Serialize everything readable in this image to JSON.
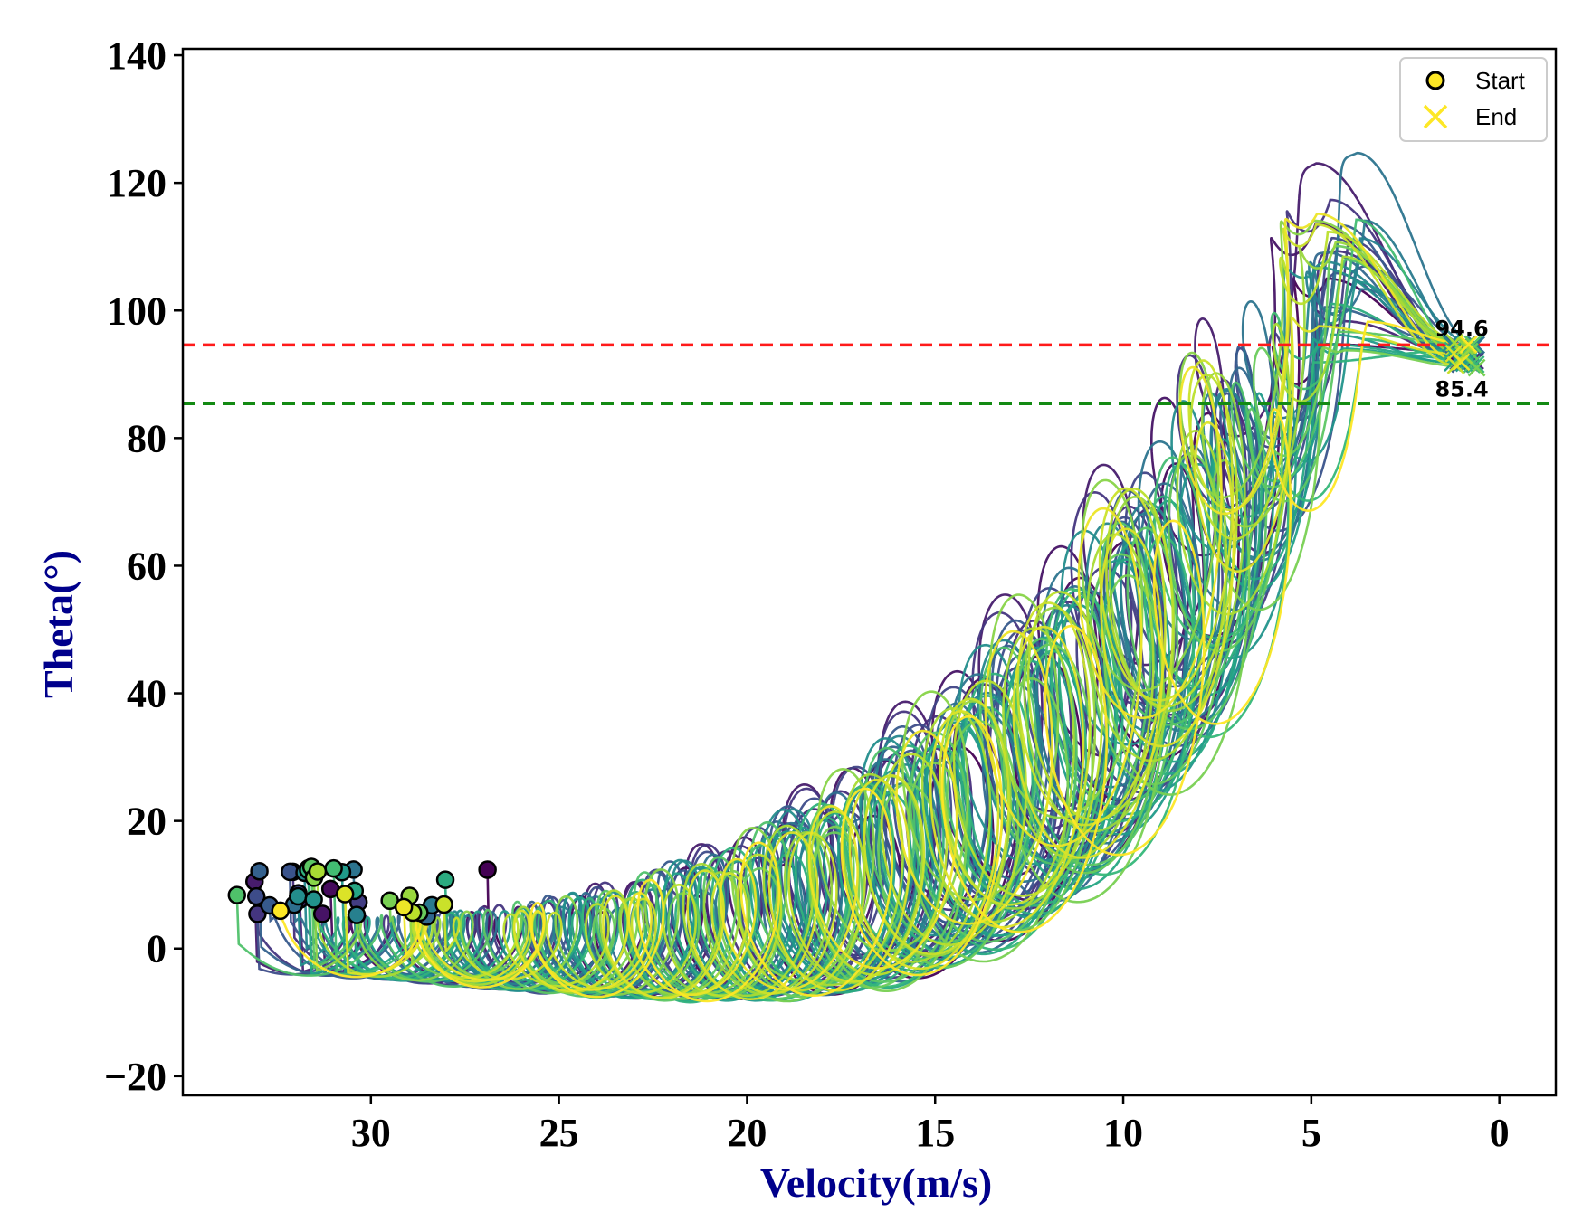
{
  "chart_data": {
    "type": "line",
    "title": "",
    "xlabel": "Velocity(m/s)",
    "ylabel": "Theta(°)",
    "xlim": [
      35,
      -1.5
    ],
    "ylim": [
      -23,
      141
    ],
    "x_ticks": [
      30,
      25,
      20,
      15,
      10,
      5,
      0
    ],
    "x_tick_labels": [
      "30",
      "25",
      "20",
      "15",
      "10",
      "5",
      "0"
    ],
    "y_ticks": [
      140,
      120,
      100,
      80,
      60,
      40,
      20,
      0,
      -20
    ],
    "y_tick_labels": [
      "140",
      "120",
      "100",
      "80",
      "60",
      "40",
      "20",
      "0",
      "−20"
    ],
    "colormap": "viridis",
    "trajectory_count": 40,
    "trajectory_shape": {
      "start_velocity_range": [
        27.5,
        33.0
      ],
      "start_theta_range": [
        5,
        13
      ],
      "end_velocity_range": [
        0.6,
        1.3
      ],
      "end_theta_range": [
        91,
        95
      ],
      "peak_theta_range": [
        100,
        133
      ],
      "peak_velocity_range": [
        3.5,
        5.0
      ]
    },
    "reference_lines": [
      {
        "value": 94.6,
        "label": "94.6",
        "color": "#ff1a1a",
        "style": "dashed"
      },
      {
        "value": 85.4,
        "label": "85.4",
        "color": "#138a13",
        "style": "dashed"
      }
    ],
    "legend": {
      "location": "top-right",
      "entries": [
        {
          "label": "Start",
          "marker": "circle",
          "color": "#fde725",
          "edge": "#000000"
        },
        {
          "label": "End",
          "marker": "x",
          "color": "#fde725"
        }
      ]
    }
  },
  "colors": {
    "axis_title": "#00008b",
    "axis": "#000000"
  }
}
